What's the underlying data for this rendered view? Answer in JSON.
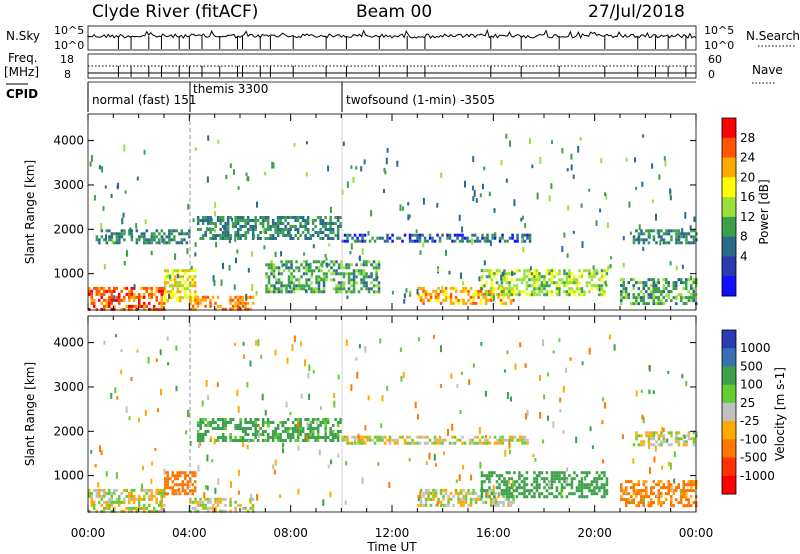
{
  "header": {
    "station": "Clyde River (fitACF)",
    "beam": "Beam 00",
    "date": "27/Jul/2018"
  },
  "strip_labels": {
    "nsky": "N.Sky",
    "nsky_ticks": [
      "10^5",
      "10^0"
    ],
    "nsearch": "N.Search",
    "freq": "Freq.",
    "freq_unit": "[MHz]",
    "freq_ticks": [
      "18",
      "8"
    ],
    "nave": "Nave",
    "nave_ticks": [
      "60",
      "0"
    ],
    "cpid": "CPID"
  },
  "cpid_segments": [
    {
      "label": "normal (fast) 151",
      "start_hour": 0.0
    },
    {
      "label": "themis 3300",
      "start_hour": 4.0
    },
    {
      "label": "twofsound (1-min) -3505",
      "start_hour": 10.0
    }
  ],
  "colorbars": {
    "power": {
      "title": "Power [dB]",
      "ticks": [
        "28",
        "24",
        "20",
        "16",
        "12",
        "8",
        "4"
      ],
      "colors": [
        "#ff0000",
        "#ff5500",
        "#ffaa00",
        "#ffff00",
        "#99e03a",
        "#3aa04a",
        "#2a6a8a",
        "#2a3ab0",
        "#1010ff"
      ]
    },
    "velocity": {
      "title": "Velocity [m s-1]",
      "ticks": [
        "1000",
        "500",
        "100",
        "25",
        "-25",
        "-100",
        "-500",
        "-1000"
      ],
      "colors": [
        "#2a3ab0",
        "#3a70b0",
        "#3aa04a",
        "#66cc33",
        "#c0c0c0",
        "#ffaa00",
        "#ff7700",
        "#ff3300",
        "#ff0000"
      ]
    }
  },
  "chart_data": [
    {
      "type": "heatmap",
      "name": "power",
      "ylabel": "Slant Range [km]",
      "xlabel": "Time UT",
      "x_ticks": [
        "00:00",
        "04:00",
        "08:00",
        "12:00",
        "16:00",
        "20:00",
        "00:00"
      ],
      "y_ticks": [
        "1000",
        "2000",
        "3000",
        "4000"
      ],
      "xlim_hours": [
        0,
        24
      ],
      "ylim_km": [
        180,
        4600
      ],
      "echo_regions": [
        {
          "t0": 0.0,
          "t1": 3.0,
          "r0": 200,
          "r1": 700,
          "level": 26
        },
        {
          "t0": 3.0,
          "t1": 4.2,
          "r0": 400,
          "r1": 1100,
          "level": 18
        },
        {
          "t0": 4.0,
          "t1": 6.5,
          "r0": 200,
          "r1": 500,
          "level": 24
        },
        {
          "t0": 0.3,
          "t1": 4.0,
          "r0": 1700,
          "r1": 2000,
          "level": 8
        },
        {
          "t0": 4.3,
          "t1": 10.0,
          "r0": 1800,
          "r1": 2300,
          "level": 8
        },
        {
          "t0": 7.0,
          "t1": 11.5,
          "r0": 600,
          "r1": 1300,
          "level": 10
        },
        {
          "t0": 10.0,
          "t1": 17.5,
          "r0": 1700,
          "r1": 1900,
          "level": 6
        },
        {
          "t0": 13.0,
          "t1": 16.8,
          "r0": 300,
          "r1": 700,
          "level": 22
        },
        {
          "t0": 15.5,
          "t1": 20.5,
          "r0": 500,
          "r1": 1100,
          "level": 14
        },
        {
          "t0": 21.5,
          "t1": 24.0,
          "r0": 1700,
          "r1": 2000,
          "level": 8
        },
        {
          "t0": 21.0,
          "t1": 24.0,
          "r0": 300,
          "r1": 900,
          "level": 10
        }
      ]
    },
    {
      "type": "heatmap",
      "name": "velocity",
      "ylabel": "Slant Range [km]",
      "xlabel": "Time UT",
      "x_ticks": [
        "00:00",
        "04:00",
        "08:00",
        "12:00",
        "16:00",
        "20:00",
        "00:00"
      ],
      "y_ticks": [
        "1000",
        "2000",
        "3000",
        "4000"
      ],
      "xlim_hours": [
        0,
        24
      ],
      "ylim_km": [
        180,
        4600
      ],
      "echo_regions": [
        {
          "t0": 0.0,
          "t1": 3.0,
          "r0": 200,
          "r1": 700,
          "level": 0
        },
        {
          "t0": 3.0,
          "t1": 4.2,
          "r0": 600,
          "r1": 1100,
          "level": -200
        },
        {
          "t0": 4.0,
          "t1": 6.5,
          "r0": 200,
          "r1": 500,
          "level": 0
        },
        {
          "t0": 4.3,
          "t1": 10.0,
          "r0": 1800,
          "r1": 2300,
          "level": 150
        },
        {
          "t0": 10.0,
          "t1": 17.5,
          "r0": 1700,
          "r1": 1900,
          "level": 0
        },
        {
          "t0": 13.0,
          "t1": 16.8,
          "r0": 300,
          "r1": 700,
          "level": 0
        },
        {
          "t0": 15.5,
          "t1": 20.5,
          "r0": 500,
          "r1": 1100,
          "level": 300
        },
        {
          "t0": 21.5,
          "t1": 24.0,
          "r0": 1700,
          "r1": 2000,
          "level": 0
        },
        {
          "t0": 21.0,
          "t1": 24.0,
          "r0": 300,
          "r1": 900,
          "level": -150
        }
      ]
    }
  ]
}
